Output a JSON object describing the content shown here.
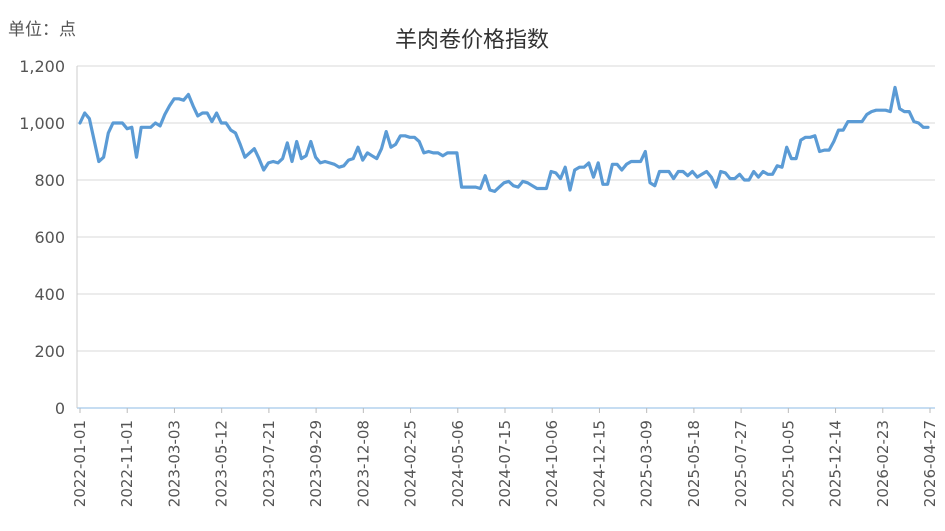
{
  "chart_data": {
    "type": "line",
    "title": "羊肉卷价格指数",
    "unit_label": "单位：点",
    "ylim": [
      0,
      1200
    ],
    "y_ticks": [
      "0",
      "200",
      "400",
      "600",
      "800",
      "1,000",
      "1,200"
    ],
    "x_ticks": [
      "2022-01-01",
      "2022-11-01",
      "2023-03-03",
      "2023-05-12",
      "2023-07-21",
      "2023-09-29",
      "2023-12-08",
      "2024-02-25",
      "2024-05-06",
      "2024-07-15",
      "2024-10-06",
      "2024-12-15",
      "2025-03-09",
      "2025-05-18",
      "2025-07-27",
      "2025-10-05",
      "2025-12-14",
      "2026-02-23",
      "2026-04-27"
    ],
    "grid": true,
    "legend": "none",
    "line_color": "#5b9bd5",
    "series": [
      {
        "values": [
          1000,
          1035,
          1015,
          940,
          865,
          880,
          965,
          1000,
          1000,
          1000,
          980,
          985,
          880,
          985,
          985,
          985,
          1000,
          990,
          1030,
          1060,
          1085,
          1085,
          1080,
          1100,
          1060,
          1025,
          1035,
          1035,
          1005,
          1035,
          1000,
          1000,
          975,
          965,
          925,
          880,
          895,
          910,
          875,
          835,
          860,
          865,
          860,
          875,
          930,
          865,
          935,
          875,
          885,
          935,
          880,
          860,
          865,
          860,
          855,
          845,
          850,
          870,
          875,
          915,
          870,
          895,
          885,
          875,
          910,
          970,
          915,
          925,
          955,
          955,
          950,
          950,
          935,
          895,
          900,
          895,
          895,
          885,
          895,
          895,
          895,
          775,
          775,
          775,
          775,
          770,
          815,
          765,
          760,
          775,
          790,
          795,
          780,
          775,
          795,
          790,
          780,
          770,
          770,
          770,
          830,
          825,
          805,
          845,
          765,
          835,
          845,
          845,
          860,
          810,
          860,
          785,
          785,
          855,
          855,
          835,
          855,
          865,
          865,
          865,
          900,
          790,
          780,
          830,
          830,
          830,
          805,
          830,
          830,
          815,
          830,
          810,
          820,
          830,
          810,
          775,
          830,
          825,
          805,
          805,
          820,
          800,
          800,
          830,
          810,
          830,
          820,
          820,
          850,
          845,
          915,
          875,
          875,
          940,
          950,
          950,
          955,
          900,
          905,
          905,
          935,
          975,
          975,
          1005,
          1005,
          1005,
          1005,
          1030,
          1040,
          1045,
          1045,
          1045,
          1040,
          1125,
          1050,
          1040,
          1040,
          1005,
          1000,
          985,
          985
        ]
      }
    ]
  }
}
